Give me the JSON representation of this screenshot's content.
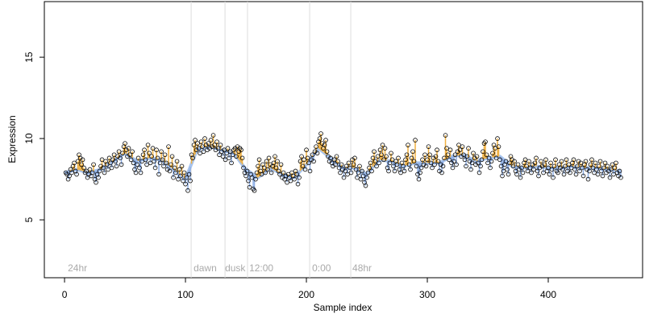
{
  "chart_data": {
    "type": "scatter",
    "xlabel": "Sample index",
    "ylabel": "Expression",
    "xlim": [
      -16.7,
      478
    ],
    "ylim": [
      1.44,
      18.42
    ],
    "xticks": [
      0,
      100,
      200,
      300,
      400
    ],
    "yticks": [
      5,
      10,
      15
    ],
    "point_color": "#000000",
    "above_color": "#f0b040",
    "below_color": "#8fb0e6",
    "vline_color": "#dddddd",
    "vlines": [
      104.7,
      132.7,
      151.3,
      202.7,
      236.7
    ],
    "annotations": [
      {
        "text": "24hr",
        "x": 2.7
      },
      {
        "text": "dawn",
        "x": 106.7
      },
      {
        "text": "dusk",
        "x": 132.7
      },
      {
        "text": "12:00",
        "x": 152.7
      },
      {
        "text": "0:00",
        "x": 204.7
      },
      {
        "text": "48hr",
        "x": 238
      }
    ],
    "x": [
      1,
      2,
      3,
      4,
      5,
      6,
      7,
      8,
      9,
      10,
      11,
      12,
      13,
      14,
      15,
      16,
      17,
      18,
      19,
      20,
      21,
      22,
      23,
      24,
      25,
      26,
      27,
      28,
      29,
      30,
      31,
      32,
      33,
      34,
      35,
      36,
      37,
      38,
      39,
      40,
      41,
      42,
      43,
      44,
      45,
      46,
      47,
      48,
      49,
      50,
      51,
      52,
      53,
      54,
      55,
      56,
      57,
      58,
      59,
      60,
      61,
      62,
      63,
      64,
      65,
      66,
      67,
      68,
      69,
      70,
      71,
      72,
      73,
      74,
      75,
      76,
      77,
      78,
      79,
      80,
      81,
      82,
      83,
      84,
      85,
      86,
      87,
      88,
      89,
      90,
      91,
      92,
      93,
      94,
      95,
      96,
      97,
      98,
      99,
      100,
      101,
      102,
      103,
      104,
      105,
      106,
      107,
      108,
      109,
      110,
      111,
      112,
      113,
      114,
      115,
      116,
      117,
      118,
      119,
      120,
      121,
      122,
      123,
      124,
      125,
      126,
      127,
      128,
      129,
      130,
      131,
      132,
      133,
      134,
      135,
      136,
      137,
      138,
      139,
      140,
      141,
      142,
      143,
      144,
      145,
      146,
      147,
      148,
      149,
      150,
      151,
      152,
      153,
      154,
      155,
      156,
      157,
      158,
      159,
      160,
      161,
      162,
      163,
      164,
      165,
      166,
      167,
      168,
      169,
      170,
      171,
      172,
      173,
      174,
      175,
      176,
      177,
      178,
      179,
      180,
      181,
      182,
      183,
      184,
      185,
      186,
      187,
      188,
      189,
      190,
      191,
      192,
      193,
      194,
      195,
      196,
      197,
      198,
      199,
      200,
      201,
      202,
      203,
      204,
      205,
      206,
      207,
      208,
      209,
      210,
      211,
      212,
      213,
      214,
      215,
      216,
      217,
      218,
      219,
      220,
      221,
      222,
      223,
      224,
      225,
      226,
      227,
      228,
      229,
      230,
      231,
      232,
      233,
      234,
      235,
      236,
      237,
      238,
      239,
      240,
      241,
      242,
      243,
      244,
      245,
      246,
      247,
      248,
      249,
      250,
      251,
      252,
      253,
      254,
      255,
      256,
      257,
      258,
      259,
      260,
      261,
      262,
      263,
      264,
      265,
      266,
      267,
      268,
      269,
      270,
      271,
      272,
      273,
      274,
      275,
      276,
      277,
      278,
      279,
      280,
      281,
      282,
      283,
      284,
      285,
      286,
      287,
      288,
      289,
      290,
      291,
      292,
      293,
      294,
      295,
      296,
      297,
      298,
      299,
      300,
      301,
      302,
      303,
      304,
      305,
      306,
      307,
      308,
      309,
      310,
      311,
      312,
      313,
      314,
      315,
      316,
      317,
      318,
      319,
      320,
      321,
      322,
      323,
      324,
      325,
      326,
      327,
      328,
      329,
      330,
      331,
      332,
      333,
      334,
      335,
      336,
      337,
      338,
      339,
      340,
      341,
      342,
      343,
      344,
      345,
      346,
      347,
      348,
      349,
      350,
      351,
      352,
      353,
      354,
      355,
      356,
      357,
      358,
      359,
      360,
      361,
      362,
      363,
      364,
      365,
      366,
      367,
      368,
      369,
      370,
      371,
      372,
      373,
      374,
      375,
      376,
      377,
      378,
      379,
      380,
      381,
      382,
      383,
      384,
      385,
      386,
      387,
      388,
      389,
      390,
      391,
      392,
      393,
      394,
      395,
      396,
      397,
      398,
      399,
      400,
      401,
      402,
      403,
      404,
      405,
      406,
      407,
      408,
      409,
      410,
      411,
      412,
      413,
      414,
      415,
      416,
      417,
      418,
      419,
      420,
      421,
      422,
      423,
      424,
      425,
      426,
      427,
      428,
      429,
      430,
      431,
      432,
      433,
      434,
      435,
      436,
      437,
      438,
      439,
      440,
      441,
      442,
      443,
      444,
      445,
      446,
      447,
      448,
      449,
      450,
      451,
      452,
      453,
      454,
      455,
      456,
      457,
      458,
      459,
      460
    ],
    "values": [
      7.9,
      7.8,
      7.5,
      7.7,
      8.1,
      7.9,
      8.3,
      8.5,
      8.0,
      7.8,
      8.6,
      9.0,
      8.8,
      8.4,
      8.7,
      8.2,
      7.9,
      8.0,
      7.6,
      7.8,
      8.1,
      7.7,
      7.9,
      8.4,
      7.5,
      7.3,
      7.8,
      7.6,
      8.0,
      8.3,
      8.7,
      8.2,
      7.9,
      8.6,
      8.4,
      8.1,
      8.8,
      8.5,
      8.2,
      8.7,
      9.0,
      8.6,
      8.3,
      8.9,
      9.2,
      8.8,
      8.4,
      9.1,
      9.5,
      9.7,
      9.3,
      8.9,
      9.4,
      9.0,
      8.7,
      9.2,
      8.5,
      8.1,
      7.9,
      8.4,
      8.8,
      8.2,
      7.9,
      8.6,
      9.0,
      9.3,
      8.7,
      8.4,
      9.6,
      9.1,
      8.5,
      8.9,
      9.4,
      8.6,
      8.2,
      9.3,
      8.8,
      7.8,
      8.5,
      9.2,
      8.7,
      8.3,
      9.0,
      8.5,
      8.1,
      9.5,
      8.0,
      8.4,
      8.9,
      7.6,
      8.2,
      7.9,
      8.6,
      7.5,
      8.1,
      7.7,
      8.3,
      7.4,
      7.9,
      7.2,
      7.6,
      6.8,
      7.8,
      7.4,
      9.0,
      8.8,
      9.6,
      9.9,
      9.3,
      9.7,
      9.4,
      9.1,
      9.8,
      9.5,
      9.2,
      10.0,
      9.6,
      9.3,
      9.7,
      9.4,
      9.9,
      9.5,
      10.2,
      9.6,
      9.3,
      9.8,
      9.4,
      9.0,
      9.6,
      9.2,
      8.9,
      9.3,
      8.7,
      9.1,
      9.4,
      8.8,
      9.2,
      8.5,
      9.0,
      9.3,
      9.4,
      8.9,
      9.5,
      9.2,
      9.4,
      9.3,
      8.8,
      8.2,
      7.9,
      7.7,
      8.0,
      7.4,
      7.0,
      7.8,
      7.6,
      6.9,
      6.8,
      7.5,
      7.9,
      8.3,
      8.7,
      8.0,
      7.8,
      8.4,
      8.2,
      7.9,
      8.6,
      8.1,
      8.8,
      8.4,
      7.9,
      8.3,
      8.5,
      8.9,
      8.2,
      8.6,
      8.0,
      7.8,
      8.4,
      7.6,
      7.9,
      7.5,
      7.7,
      7.3,
      7.8,
      7.6,
      7.4,
      7.9,
      7.7,
      7.5,
      8.0,
      7.8,
      7.2,
      7.6,
      8.6,
      8.9,
      8.3,
      8.7,
      8.1,
      9.3,
      8.8,
      8.5,
      8.0,
      8.7,
      9.0,
      8.6,
      9.2,
      9.5,
      9.1,
      9.8,
      10.0,
      10.3,
      9.7,
      9.4,
      9.6,
      9.9,
      9.2,
      8.9,
      8.6,
      8.8,
      8.5,
      8.3,
      8.7,
      8.4,
      8.9,
      8.6,
      8.2,
      7.9,
      8.4,
      8.1,
      7.6,
      8.0,
      8.3,
      7.8,
      8.5,
      8.2,
      7.9,
      8.7,
      8.4,
      8.8,
      8.1,
      7.6,
      7.9,
      8.3,
      7.5,
      8.0,
      7.7,
      7.3,
      7.1,
      7.6,
      7.9,
      8.2,
      8.5,
      8.0,
      8.8,
      9.2,
      8.6,
      8.3,
      8.9,
      8.5,
      9.3,
      9.0,
      9.6,
      8.7,
      9.4,
      8.9,
      8.2,
      8.0,
      8.5,
      9.1,
      8.7,
      8.3,
      8.0,
      8.6,
      8.4,
      8.8,
      8.1,
      7.9,
      8.5,
      8.3,
      8.0,
      8.7,
      9.0,
      9.6,
      8.4,
      8.1,
      8.8,
      9.2,
      8.6,
      9.9,
      8.3,
      7.8,
      7.5,
      7.9,
      8.2,
      8.7,
      8.4,
      9.0,
      8.3,
      8.7,
      9.5,
      9.0,
      8.5,
      8.2,
      8.8,
      8.4,
      8.9,
      9.3,
      8.6,
      8.0,
      8.4,
      7.9,
      8.3,
      8.8,
      10.2,
      9.4,
      9.0,
      8.7,
      9.3,
      8.5,
      8.2,
      8.6,
      9.0,
      8.4,
      9.2,
      9.6,
      9.3,
      8.9,
      9.5,
      9.0,
      8.7,
      8.3,
      8.9,
      9.4,
      8.6,
      8.1,
      8.5,
      9.1,
      8.8,
      8.4,
      8.9,
      8.5,
      7.9,
      8.3,
      8.7,
      9.2,
      9.7,
      9.8,
      9.0,
      8.5,
      8.8,
      8.2,
      8.6,
      9.1,
      9.6,
      9.4,
      8.8,
      10.0,
      9.5,
      8.7,
      8.3,
      7.7,
      8.0,
      8.4,
      8.6,
      8.1,
      7.8,
      8.5,
      8.9,
      8.7,
      8.3,
      8.6,
      8.0,
      7.8,
      8.4,
      8.1,
      7.6,
      8.2,
      7.9,
      8.5,
      8.7,
      8.3,
      8.0,
      8.6,
      8.2,
      7.9,
      8.4,
      8.1,
      8.5,
      8.8,
      8.0,
      7.7,
      8.2,
      8.6,
      8.3,
      7.9,
      8.4,
      8.7,
      8.0,
      8.2,
      7.8,
      8.5,
      8.1,
      7.6,
      8.3,
      8.7,
      8.0,
      7.9,
      8.4,
      8.2,
      8.6,
      8.1,
      7.8,
      8.3,
      8.7,
      8.0,
      8.4,
      7.9,
      8.2,
      8.5,
      8.7,
      8.1,
      7.8,
      8.3,
      8.6,
      8.0,
      8.5,
      8.2,
      7.7,
      8.4,
      8.6,
      8.1,
      7.5,
      8.0,
      8.4,
      8.7,
      8.2,
      7.9,
      8.5,
      8.1,
      7.8,
      8.3,
      8.6,
      8.0,
      7.7,
      8.2,
      8.5,
      7.9,
      8.3,
      8.0,
      7.6,
      8.1,
      8.4,
      7.8,
      8.2,
      8.5,
      7.9,
      7.7,
      8.0,
      7.6
    ],
    "fit": {
      "color": "#a9c5ee",
      "x": [
        0,
        10,
        20,
        30,
        40,
        50,
        60,
        70,
        80,
        90,
        100,
        110,
        120,
        130,
        140,
        150,
        160,
        170,
        180,
        190,
        200,
        210,
        220,
        230,
        240,
        250,
        260,
        270,
        280,
        290,
        300,
        310,
        320,
        330,
        340,
        350,
        360,
        370,
        380,
        390,
        400,
        410,
        420,
        430,
        440,
        450,
        460
      ],
      "values": [
        7.9,
        8.1,
        7.9,
        8.1,
        8.6,
        9.1,
        8.6,
        8.8,
        8.7,
        8.1,
        7.5,
        9.4,
        9.5,
        9.3,
        9.1,
        8.1,
        7.6,
        8.2,
        7.8,
        7.6,
        8.4,
        9.4,
        8.8,
        8.2,
        8.2,
        7.8,
        8.7,
        8.6,
        8.3,
        8.5,
        8.5,
        8.5,
        8.9,
        9.0,
        8.6,
        8.8,
        8.9,
        8.3,
        8.2,
        8.3,
        8.2,
        8.2,
        8.3,
        8.2,
        8.2,
        8.1,
        8.0
      ]
    }
  }
}
